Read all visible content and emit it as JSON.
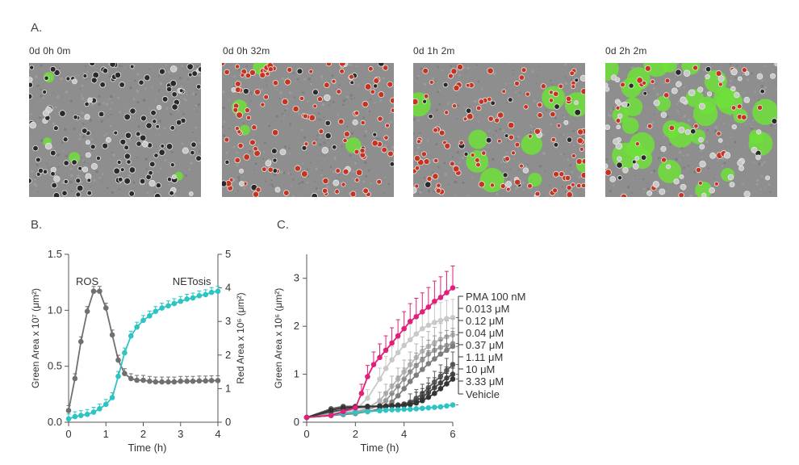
{
  "panel_labels": {
    "a": "A.",
    "b": "B.",
    "c": "C."
  },
  "micrographs": [
    {
      "time_label": "0d 0h 0m"
    },
    {
      "time_label": "0d 0h 32m"
    },
    {
      "time_label": "0d 1h 2m"
    },
    {
      "time_label": "0d 2h 2m"
    }
  ],
  "colors": {
    "gray_series": "#707070",
    "teal_series": "#2ec4c4",
    "pma": "#e0207a",
    "micro_bg": "#8e8e8e",
    "green_fluor": "#6fe03a",
    "red_fluor": "#c8331f"
  },
  "chart_data": [
    {
      "type": "line",
      "title": "",
      "xlabel": "Time (h)",
      "ylabel_left": "Green Area x 10⁷ (μm²)",
      "ylabel_right": "Red Area x 10⁶ (μm²)",
      "xlim": [
        0,
        4
      ],
      "ylim_left": [
        0,
        1.5
      ],
      "ylim_right": [
        0,
        5
      ],
      "xticks": [
        "0",
        "1",
        "2",
        "3",
        "4"
      ],
      "yticks_left": [
        "0.0",
        "0.5",
        "1.0",
        "1.5"
      ],
      "yticks_right": [
        "0",
        "1",
        "2",
        "3",
        "4",
        "5"
      ],
      "annotations": [
        "ROS",
        "NETosis"
      ],
      "series": [
        {
          "name": "ROS",
          "axis": "right",
          "color": "#707070",
          "x": [
            0,
            0.17,
            0.33,
            0.5,
            0.67,
            0.83,
            1.0,
            1.17,
            1.33,
            1.5,
            1.67,
            1.83,
            2.0,
            2.17,
            2.33,
            2.5,
            2.67,
            2.83,
            3.0,
            3.17,
            3.33,
            3.5,
            3.67,
            3.83,
            4.0
          ],
          "y": [
            0.35,
            1.3,
            2.4,
            3.3,
            3.9,
            3.9,
            3.4,
            2.6,
            1.85,
            1.45,
            1.3,
            1.25,
            1.25,
            1.22,
            1.2,
            1.2,
            1.2,
            1.2,
            1.22,
            1.22,
            1.22,
            1.23,
            1.23,
            1.24,
            1.24
          ]
        },
        {
          "name": "NETosis",
          "axis": "left",
          "color": "#2ec4c4",
          "x": [
            0,
            0.17,
            0.33,
            0.5,
            0.67,
            0.83,
            1.0,
            1.17,
            1.33,
            1.5,
            1.67,
            1.83,
            2.0,
            2.17,
            2.33,
            2.5,
            2.67,
            2.83,
            3.0,
            3.17,
            3.33,
            3.5,
            3.67,
            3.83,
            4.0
          ],
          "y": [
            0.03,
            0.05,
            0.06,
            0.07,
            0.09,
            0.12,
            0.16,
            0.22,
            0.41,
            0.62,
            0.77,
            0.85,
            0.91,
            0.95,
            0.99,
            1.02,
            1.04,
            1.06,
            1.08,
            1.1,
            1.11,
            1.13,
            1.14,
            1.16,
            1.17
          ]
        }
      ]
    },
    {
      "type": "line",
      "title": "",
      "xlabel": "Time (h)",
      "ylabel": "Green Area x 10⁶ (μm²)",
      "xlim": [
        0,
        6
      ],
      "ylim": [
        0,
        3.5
      ],
      "xticks": [
        "0",
        "2",
        "4",
        "6"
      ],
      "yticks": [
        "0",
        "1",
        "2",
        "3"
      ],
      "series": [
        {
          "name": "PMA 100 nM",
          "color": "#e0207a",
          "x": [
            0,
            1,
            1.5,
            2,
            2.25,
            2.5,
            2.75,
            3,
            3.25,
            3.5,
            3.75,
            4,
            4.25,
            4.5,
            4.75,
            5,
            5.25,
            5.5,
            5.75,
            6
          ],
          "y": [
            0.1,
            0.14,
            0.22,
            0.3,
            0.6,
            0.95,
            1.2,
            1.35,
            1.5,
            1.65,
            1.8,
            1.95,
            2.1,
            2.2,
            2.3,
            2.4,
            2.52,
            2.6,
            2.7,
            2.8
          ]
        },
        {
          "name": "0.013 μM",
          "color": "#c9c9c9",
          "x": [
            0,
            1,
            1.5,
            2,
            2.5,
            3,
            3.25,
            3.5,
            3.75,
            4,
            4.25,
            4.5,
            4.75,
            5,
            5.25,
            5.5,
            5.75,
            6
          ],
          "y": [
            0.1,
            0.2,
            0.24,
            0.25,
            0.5,
            0.9,
            1.12,
            1.3,
            1.45,
            1.6,
            1.72,
            1.84,
            1.95,
            2.02,
            2.08,
            2.12,
            2.16,
            2.18
          ]
        },
        {
          "name": "0.12 μM",
          "color": "#b5b5b5",
          "x": [
            0,
            1,
            1.5,
            2,
            2.5,
            3,
            3.25,
            3.5,
            3.75,
            4,
            4.25,
            4.5,
            4.75,
            5,
            5.25,
            5.5,
            5.75,
            6
          ],
          "y": [
            0.1,
            0.18,
            0.2,
            0.22,
            0.3,
            0.45,
            0.6,
            0.75,
            0.9,
            1.05,
            1.2,
            1.35,
            1.48,
            1.58,
            1.66,
            1.73,
            1.78,
            1.82
          ]
        },
        {
          "name": "0.04 μM",
          "color": "#9a9a9a",
          "x": [
            0,
            1,
            1.5,
            2,
            2.5,
            3,
            3.25,
            3.5,
            3.75,
            4,
            4.25,
            4.5,
            4.75,
            5,
            5.25,
            5.5,
            5.75,
            6
          ],
          "y": [
            0.1,
            0.16,
            0.18,
            0.2,
            0.26,
            0.35,
            0.45,
            0.6,
            0.75,
            0.9,
            1.05,
            1.18,
            1.3,
            1.42,
            1.5,
            1.56,
            1.6,
            1.64
          ]
        },
        {
          "name": "0.37 μM",
          "color": "#7d7d7d",
          "x": [
            0,
            1,
            1.5,
            2,
            2.5,
            3,
            3.25,
            3.5,
            3.75,
            4,
            4.25,
            4.5,
            4.75,
            5,
            5.25,
            5.5,
            5.75,
            6
          ],
          "y": [
            0.1,
            0.14,
            0.16,
            0.18,
            0.22,
            0.28,
            0.33,
            0.42,
            0.55,
            0.7,
            0.85,
            0.98,
            1.1,
            1.22,
            1.32,
            1.42,
            1.5,
            1.58
          ]
        },
        {
          "name": "1.11 μM",
          "color": "#5e5e5e",
          "x": [
            0,
            1,
            1.5,
            2,
            2.5,
            3,
            3.25,
            3.5,
            3.75,
            4,
            4.25,
            4.5,
            4.75,
            5,
            5.25,
            5.5,
            5.75,
            6
          ],
          "y": [
            0.1,
            0.28,
            0.33,
            0.33,
            0.33,
            0.34,
            0.34,
            0.35,
            0.36,
            0.38,
            0.42,
            0.5,
            0.6,
            0.72,
            0.84,
            0.96,
            1.08,
            1.2
          ]
        },
        {
          "name": "10 μM",
          "color": "#474747",
          "x": [
            0,
            1,
            1.5,
            2,
            2.5,
            3,
            3.25,
            3.5,
            3.75,
            4,
            4.25,
            4.5,
            4.75,
            5,
            5.25,
            5.5,
            5.75,
            6
          ],
          "y": [
            0.1,
            0.22,
            0.26,
            0.3,
            0.32,
            0.33,
            0.33,
            0.34,
            0.35,
            0.37,
            0.4,
            0.45,
            0.52,
            0.62,
            0.72,
            0.82,
            0.92,
            1.0
          ]
        },
        {
          "name": "3.33 μM",
          "color": "#333333",
          "x": [
            0,
            1,
            1.5,
            2,
            2.5,
            3,
            3.25,
            3.5,
            3.75,
            4,
            4.25,
            4.5,
            4.75,
            5,
            5.25,
            5.5,
            5.75,
            6
          ],
          "y": [
            0.1,
            0.25,
            0.3,
            0.32,
            0.33,
            0.33,
            0.33,
            0.34,
            0.34,
            0.35,
            0.37,
            0.4,
            0.45,
            0.52,
            0.6,
            0.7,
            0.8,
            0.9
          ]
        },
        {
          "name": "Vehicle",
          "color": "#2ec4c4",
          "x": [
            0,
            1,
            1.5,
            2,
            2.5,
            3,
            3.25,
            3.5,
            3.75,
            4,
            4.25,
            4.5,
            4.75,
            5,
            5.25,
            5.5,
            5.75,
            6
          ],
          "y": [
            0.1,
            0.14,
            0.18,
            0.2,
            0.22,
            0.24,
            0.25,
            0.26,
            0.26,
            0.27,
            0.27,
            0.28,
            0.29,
            0.3,
            0.31,
            0.32,
            0.34,
            0.36
          ]
        }
      ]
    }
  ]
}
